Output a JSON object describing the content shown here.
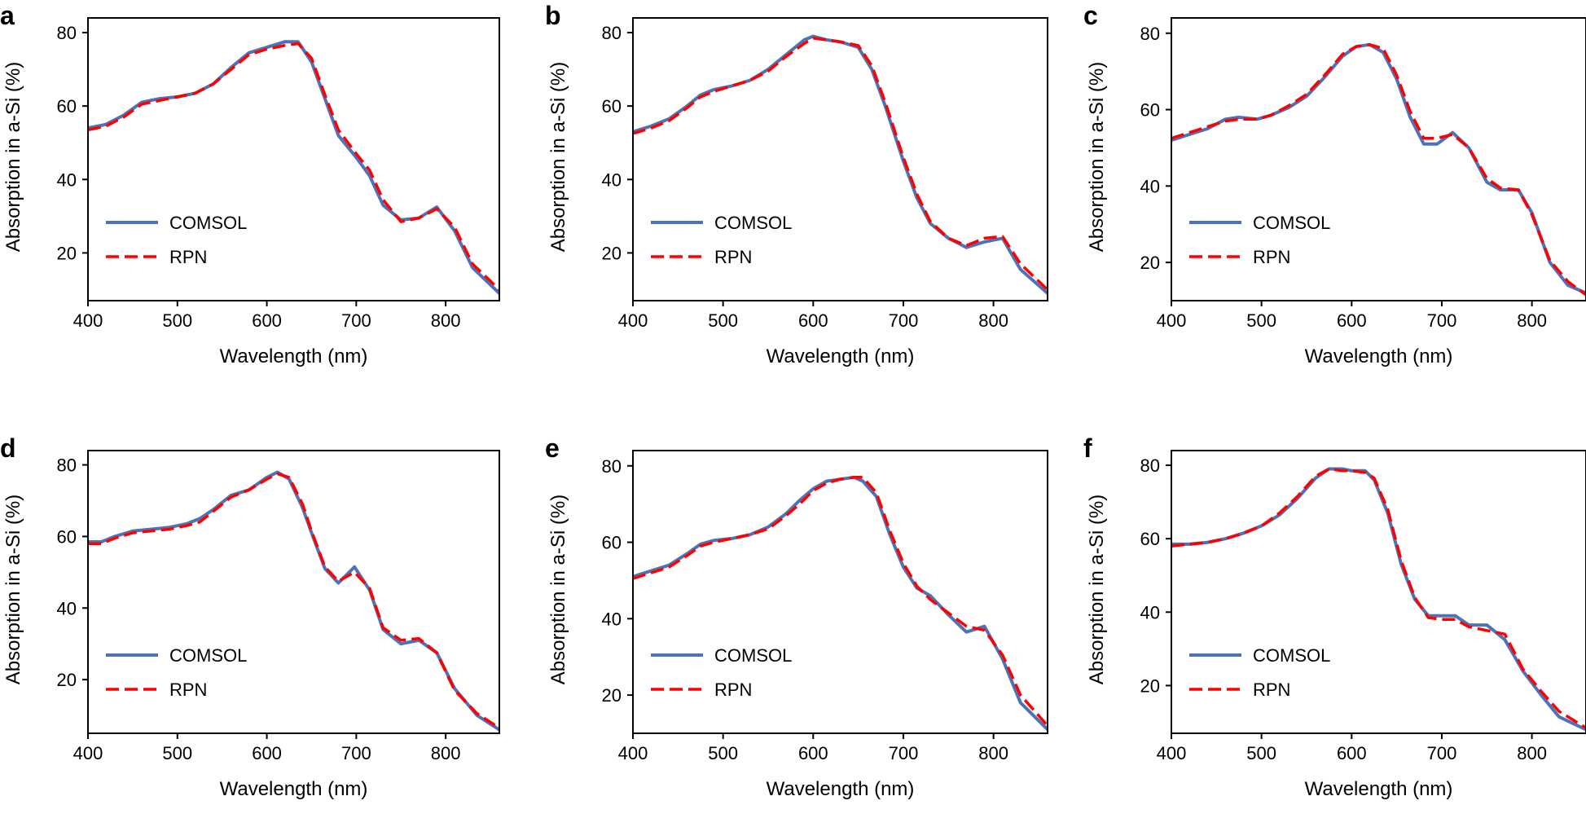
{
  "figure": {
    "x_label": "Wavelength (nm)",
    "y_label": "Absorption in a-Si (%)",
    "legend": [
      "COMSOL",
      "RPN"
    ],
    "colors": {
      "comsol": "#4e72b8",
      "rpn": "#ff0000",
      "axis": "#000000"
    }
  },
  "chart_data": [
    {
      "panel": "a",
      "type": "line",
      "xlabel": "Wavelength (nm)",
      "ylabel": "Absorption in a-Si (%)",
      "xlim": [
        400,
        860
      ],
      "ylim": [
        7,
        84
      ],
      "xticks": [
        400,
        500,
        600,
        700,
        800
      ],
      "yticks": [
        20,
        40,
        60,
        80
      ],
      "legend_position": "lower-left",
      "series": [
        {
          "name": "COMSOL",
          "style": "solid",
          "color": "#4e72b8",
          "x": [
            400,
            420,
            440,
            460,
            480,
            500,
            520,
            540,
            560,
            580,
            600,
            620,
            635,
            650,
            665,
            680,
            700,
            715,
            730,
            750,
            770,
            790,
            810,
            830,
            860
          ],
          "y": [
            54,
            55,
            57.5,
            61,
            62,
            62.5,
            63.5,
            66,
            70.5,
            74.5,
            76,
            77.5,
            77.5,
            72,
            62,
            52,
            46,
            41,
            33,
            29,
            29.5,
            32.5,
            26,
            16,
            9
          ]
        },
        {
          "name": "RPN",
          "style": "dashed",
          "color": "#ff0000",
          "x": [
            400,
            420,
            440,
            460,
            480,
            500,
            520,
            540,
            560,
            580,
            600,
            620,
            635,
            650,
            665,
            680,
            700,
            715,
            730,
            750,
            770,
            790,
            810,
            830,
            860
          ],
          "y": [
            53.5,
            54.5,
            57,
            60.5,
            61.5,
            62.5,
            63.5,
            66,
            70,
            74,
            75.5,
            76.5,
            77,
            73,
            63,
            53.5,
            47,
            42.5,
            34.5,
            28.5,
            29.5,
            32,
            27,
            17,
            10
          ]
        }
      ]
    },
    {
      "panel": "b",
      "type": "line",
      "xlabel": "Wavelength (nm)",
      "ylabel": "Absorption in a-Si (%)",
      "xlim": [
        400,
        860
      ],
      "ylim": [
        7,
        84
      ],
      "xticks": [
        400,
        500,
        600,
        700,
        800
      ],
      "yticks": [
        20,
        40,
        60,
        80
      ],
      "legend_position": "lower-left",
      "series": [
        {
          "name": "COMSOL",
          "style": "solid",
          "color": "#4e72b8",
          "x": [
            400,
            420,
            440,
            460,
            475,
            490,
            510,
            530,
            550,
            570,
            590,
            600,
            615,
            630,
            650,
            665,
            680,
            700,
            715,
            730,
            750,
            770,
            790,
            810,
            830,
            860
          ],
          "y": [
            53,
            54.5,
            56.5,
            60,
            63,
            64.5,
            65.5,
            67,
            70,
            74,
            78,
            79,
            78,
            77.5,
            76,
            70,
            60,
            45,
            35,
            28,
            24,
            21.5,
            23,
            24,
            15.5,
            9
          ]
        },
        {
          "name": "RPN",
          "style": "dashed",
          "color": "#ff0000",
          "x": [
            400,
            420,
            440,
            460,
            475,
            490,
            510,
            530,
            550,
            570,
            590,
            600,
            615,
            630,
            650,
            665,
            680,
            700,
            715,
            730,
            750,
            770,
            790,
            810,
            830,
            860
          ],
          "y": [
            52.5,
            54,
            56,
            59.5,
            62.5,
            64,
            65.5,
            67,
            69.5,
            73.5,
            77,
            78.5,
            78,
            77.5,
            76.5,
            71,
            61,
            46,
            36,
            28.5,
            24,
            22,
            24,
            24.5,
            17,
            10
          ]
        }
      ]
    },
    {
      "panel": "c",
      "type": "line",
      "xlabel": "Wavelength (nm)",
      "ylabel": "Absorption in a-Si (%)",
      "xlim": [
        400,
        860
      ],
      "ylim": [
        10,
        84
      ],
      "xticks": [
        400,
        500,
        600,
        700,
        800
      ],
      "yticks": [
        20,
        40,
        60,
        80
      ],
      "legend_position": "lower-left",
      "series": [
        {
          "name": "COMSOL",
          "style": "solid",
          "color": "#4e72b8",
          "x": [
            400,
            420,
            440,
            460,
            475,
            495,
            510,
            530,
            550,
            570,
            590,
            605,
            620,
            635,
            650,
            665,
            680,
            695,
            712,
            730,
            750,
            765,
            785,
            800,
            820,
            840,
            860
          ],
          "y": [
            52,
            53.5,
            55,
            57.5,
            58,
            57.5,
            58.5,
            60.5,
            63.5,
            68.5,
            74,
            76.5,
            77,
            75,
            68,
            58,
            51,
            51,
            54,
            50,
            41,
            39,
            39,
            33,
            20,
            14,
            12
          ]
        },
        {
          "name": "RPN",
          "style": "dashed",
          "color": "#ff0000",
          "x": [
            400,
            420,
            440,
            460,
            475,
            495,
            510,
            530,
            550,
            570,
            590,
            605,
            620,
            635,
            650,
            665,
            680,
            695,
            712,
            730,
            750,
            765,
            785,
            800,
            820,
            840,
            860
          ],
          "y": [
            52.5,
            54,
            55.5,
            57,
            57.5,
            57.5,
            58.5,
            61,
            64,
            69,
            74.5,
            76.5,
            77,
            76,
            69,
            59.5,
            52.5,
            52.5,
            53.5,
            50,
            42,
            39.5,
            39,
            32.5,
            20.5,
            15,
            11.5
          ]
        }
      ]
    },
    {
      "panel": "d",
      "type": "line",
      "xlabel": "Wavelength (nm)",
      "ylabel": "Absorption in a-Si (%)",
      "xlim": [
        400,
        860
      ],
      "ylim": [
        5,
        84
      ],
      "xticks": [
        400,
        500,
        600,
        700,
        800
      ],
      "yticks": [
        20,
        40,
        60,
        80
      ],
      "legend_position": "lower-left",
      "series": [
        {
          "name": "COMSOL",
          "style": "solid",
          "color": "#4e72b8",
          "x": [
            400,
            415,
            430,
            450,
            470,
            490,
            510,
            525,
            540,
            560,
            580,
            600,
            612,
            625,
            640,
            650,
            665,
            680,
            698,
            715,
            730,
            750,
            770,
            790,
            810,
            835,
            860
          ],
          "y": [
            58.5,
            58.5,
            60,
            61.5,
            62,
            62.5,
            63.5,
            65,
            67.5,
            71.5,
            73,
            76.5,
            78,
            76,
            68,
            61,
            51,
            47,
            51.5,
            45,
            34,
            30,
            31,
            27.5,
            17.5,
            10,
            6
          ]
        },
        {
          "name": "RPN",
          "style": "dashed",
          "color": "#ff0000",
          "x": [
            400,
            415,
            430,
            450,
            470,
            490,
            510,
            525,
            540,
            560,
            580,
            600,
            612,
            625,
            640,
            650,
            665,
            680,
            698,
            715,
            730,
            750,
            770,
            790,
            810,
            835,
            860
          ],
          "y": [
            58,
            58,
            59.5,
            61,
            61.5,
            62,
            63,
            64,
            67,
            71,
            73,
            76,
            77.5,
            76.5,
            69,
            61.5,
            51.5,
            47.5,
            50,
            45.5,
            34.5,
            31,
            31.5,
            27.5,
            17,
            10.5,
            6.5
          ]
        }
      ]
    },
    {
      "panel": "e",
      "type": "line",
      "xlabel": "Wavelength (nm)",
      "ylabel": "Absorption in a-Si (%)",
      "xlim": [
        400,
        860
      ],
      "ylim": [
        10,
        84
      ],
      "xticks": [
        400,
        500,
        600,
        700,
        800
      ],
      "yticks": [
        20,
        40,
        60,
        80
      ],
      "legend_position": "lower-left",
      "series": [
        {
          "name": "COMSOL",
          "style": "solid",
          "color": "#4e72b8",
          "x": [
            400,
            420,
            440,
            460,
            475,
            490,
            510,
            530,
            550,
            570,
            585,
            600,
            615,
            630,
            645,
            655,
            670,
            685,
            700,
            715,
            730,
            750,
            770,
            790,
            810,
            830,
            860
          ],
          "y": [
            51,
            52.5,
            54,
            57,
            59.5,
            60.5,
            61,
            62,
            64,
            67.5,
            71,
            74,
            76,
            76.5,
            77,
            76,
            72,
            62,
            53.5,
            48,
            46,
            41,
            36.5,
            38,
            29.5,
            18,
            11
          ]
        },
        {
          "name": "RPN",
          "style": "dashed",
          "color": "#ff0000",
          "x": [
            400,
            420,
            440,
            460,
            475,
            490,
            510,
            530,
            550,
            570,
            585,
            600,
            615,
            630,
            645,
            655,
            670,
            685,
            700,
            715,
            730,
            750,
            770,
            790,
            810,
            830,
            860
          ],
          "y": [
            50.5,
            52,
            53.5,
            56.5,
            59,
            60,
            61,
            62,
            63.5,
            67,
            70,
            73.5,
            75.5,
            76.5,
            77,
            77,
            73,
            63,
            54.5,
            48.5,
            45,
            41.5,
            38,
            37,
            30.5,
            20,
            12
          ]
        }
      ]
    },
    {
      "panel": "f",
      "type": "line",
      "xlabel": "Wavelength (nm)",
      "ylabel": "Absorption in a-Si (%)",
      "xlim": [
        400,
        860
      ],
      "ylim": [
        7,
        84
      ],
      "xticks": [
        400,
        500,
        600,
        700,
        800
      ],
      "yticks": [
        20,
        40,
        60,
        80
      ],
      "legend_position": "lower-left",
      "series": [
        {
          "name": "COMSOL",
          "style": "solid",
          "color": "#4e72b8",
          "x": [
            400,
            420,
            440,
            460,
            480,
            500,
            520,
            540,
            560,
            575,
            590,
            600,
            615,
            625,
            640,
            655,
            670,
            685,
            700,
            715,
            730,
            750,
            770,
            790,
            810,
            830,
            860
          ],
          "y": [
            58.5,
            58.5,
            59,
            60,
            61.5,
            63.5,
            66.5,
            71,
            76.5,
            79,
            79,
            78.5,
            78.5,
            76,
            67,
            53,
            43.5,
            39,
            39,
            39,
            36.5,
            36.5,
            32.5,
            24,
            17.5,
            11.5,
            8
          ]
        },
        {
          "name": "RPN",
          "style": "dashed",
          "color": "#ff0000",
          "x": [
            400,
            420,
            440,
            460,
            480,
            500,
            520,
            540,
            560,
            575,
            590,
            600,
            615,
            625,
            640,
            655,
            670,
            685,
            700,
            715,
            730,
            750,
            770,
            790,
            810,
            830,
            860
          ],
          "y": [
            58,
            58.5,
            59,
            60,
            61.5,
            63.5,
            67,
            71.5,
            77,
            79,
            78.5,
            78.5,
            78,
            76.5,
            68,
            54,
            44,
            38.5,
            38,
            38,
            36,
            35,
            34,
            24.5,
            18.5,
            13,
            8.5
          ]
        }
      ]
    }
  ]
}
